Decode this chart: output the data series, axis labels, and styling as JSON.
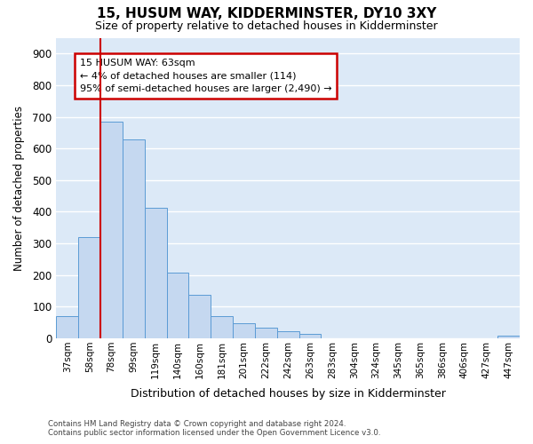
{
  "title1": "15, HUSUM WAY, KIDDERMINSTER, DY10 3XY",
  "title2": "Size of property relative to detached houses in Kidderminster",
  "xlabel": "Distribution of detached houses by size in Kidderminster",
  "ylabel": "Number of detached properties",
  "categories": [
    "37sqm",
    "58sqm",
    "78sqm",
    "99sqm",
    "119sqm",
    "140sqm",
    "160sqm",
    "181sqm",
    "201sqm",
    "222sqm",
    "242sqm",
    "263sqm",
    "283sqm",
    "304sqm",
    "324sqm",
    "345sqm",
    "365sqm",
    "386sqm",
    "406sqm",
    "427sqm",
    "447sqm"
  ],
  "values": [
    70,
    320,
    685,
    628,
    413,
    208,
    137,
    70,
    48,
    34,
    22,
    14,
    0,
    0,
    0,
    0,
    0,
    0,
    0,
    0,
    8
  ],
  "bar_color": "#c5d8f0",
  "bar_edge_color": "#5b9bd5",
  "background_color": "#dce9f7",
  "grid_color": "#ffffff",
  "vline_x": 1.5,
  "vline_color": "#cc0000",
  "annotation_text": "15 HUSUM WAY: 63sqm\n← 4% of detached houses are smaller (114)\n95% of semi-detached houses are larger (2,490) →",
  "annotation_box_color": "#ffffff",
  "annotation_box_edge": "#cc0000",
  "ylim": [
    0,
    950
  ],
  "yticks": [
    0,
    100,
    200,
    300,
    400,
    500,
    600,
    700,
    800,
    900
  ],
  "footnote": "Contains HM Land Registry data © Crown copyright and database right 2024.\nContains public sector information licensed under the Open Government Licence v3.0."
}
